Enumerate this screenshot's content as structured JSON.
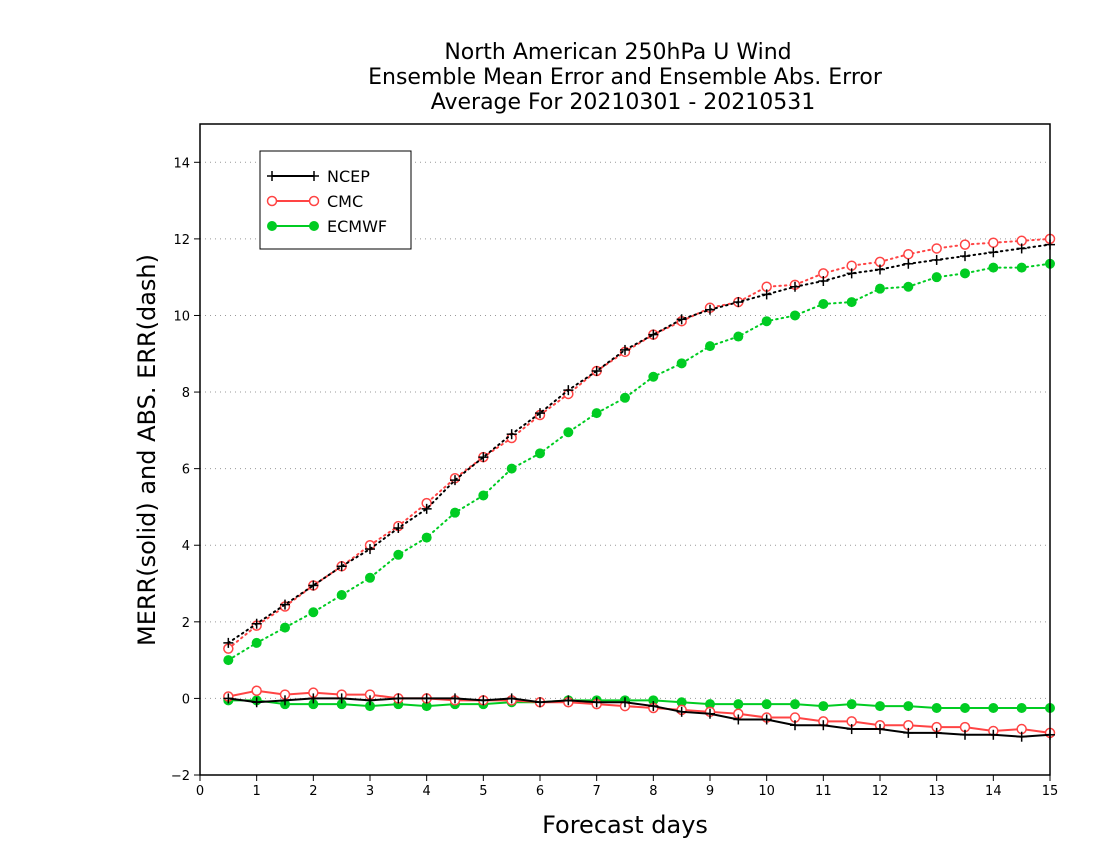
{
  "chart_data": {
    "type": "line",
    "title": [
      "North American 250hPa U Wind",
      "Ensemble Mean Error and Ensemble Abs. Error",
      "Average For 20210301 - 20210531"
    ],
    "xlabel": "Forecast days",
    "ylabel": "MERR(solid) and ABS. ERR(dash)",
    "xlim": [
      0,
      15
    ],
    "ylim": [
      -2,
      15
    ],
    "xticks": [
      0,
      1,
      2,
      3,
      4,
      5,
      6,
      7,
      8,
      9,
      10,
      11,
      12,
      13,
      14,
      15
    ],
    "yticks": [
      -2,
      0,
      2,
      4,
      6,
      8,
      10,
      12,
      14
    ],
    "grid": "horizontal dotted",
    "legend_position": "top-left",
    "x": [
      0.5,
      1,
      1.5,
      2,
      2.5,
      3,
      3.5,
      4,
      4.5,
      5,
      5.5,
      6,
      6.5,
      7,
      7.5,
      8,
      8.5,
      9,
      9.5,
      10,
      10.5,
      11,
      11.5,
      12,
      12.5,
      13,
      13.5,
      14,
      14.5,
      15
    ],
    "series": [
      {
        "name": "NCEP",
        "color": "#000000",
        "marker": "plus",
        "abs_error": [
          1.45,
          1.95,
          2.45,
          2.95,
          3.45,
          3.9,
          4.45,
          4.95,
          5.7,
          6.3,
          6.9,
          7.45,
          8.05,
          8.55,
          9.1,
          9.5,
          9.9,
          10.15,
          10.35,
          10.55,
          10.75,
          10.9,
          11.1,
          11.2,
          11.35,
          11.45,
          11.55,
          11.65,
          11.75,
          11.85
        ],
        "mean_error": [
          0.0,
          -0.1,
          -0.05,
          0.0,
          0.0,
          -0.05,
          0.0,
          0.0,
          0.0,
          -0.05,
          0.0,
          -0.1,
          -0.05,
          -0.1,
          -0.1,
          -0.2,
          -0.35,
          -0.4,
          -0.55,
          -0.55,
          -0.7,
          -0.7,
          -0.8,
          -0.8,
          -0.9,
          -0.9,
          -0.95,
          -0.95,
          -1.0,
          -0.95
        ]
      },
      {
        "name": "CMC",
        "color": "#ff4444",
        "marker": "open-circle",
        "abs_error": [
          1.3,
          1.9,
          2.4,
          2.95,
          3.45,
          4.0,
          4.5,
          5.1,
          5.75,
          6.3,
          6.8,
          7.4,
          7.95,
          8.55,
          9.05,
          9.5,
          9.85,
          10.2,
          10.35,
          10.75,
          10.8,
          11.1,
          11.3,
          11.4,
          11.6,
          11.75,
          11.85,
          11.9,
          11.95,
          12.0
        ],
        "mean_error": [
          0.05,
          0.2,
          0.1,
          0.15,
          0.1,
          0.1,
          0.0,
          0.0,
          -0.05,
          -0.05,
          -0.05,
          -0.1,
          -0.1,
          -0.15,
          -0.2,
          -0.25,
          -0.3,
          -0.35,
          -0.4,
          -0.5,
          -0.5,
          -0.6,
          -0.6,
          -0.7,
          -0.7,
          -0.75,
          -0.75,
          -0.85,
          -0.8,
          -0.9
        ]
      },
      {
        "name": "ECMWF",
        "color": "#00cc22",
        "marker": "filled-circle",
        "abs_error": [
          1.0,
          1.45,
          1.85,
          2.25,
          2.7,
          3.15,
          3.75,
          4.2,
          4.85,
          5.3,
          6.0,
          6.4,
          6.95,
          7.45,
          7.85,
          8.4,
          8.75,
          9.2,
          9.45,
          9.85,
          10.0,
          10.3,
          10.35,
          10.7,
          10.75,
          11.0,
          11.1,
          11.25,
          11.25,
          11.35
        ],
        "mean_error": [
          -0.05,
          -0.05,
          -0.15,
          -0.15,
          -0.15,
          -0.2,
          -0.15,
          -0.2,
          -0.15,
          -0.15,
          -0.1,
          -0.1,
          -0.05,
          -0.05,
          -0.05,
          -0.05,
          -0.1,
          -0.15,
          -0.15,
          -0.15,
          -0.15,
          -0.2,
          -0.15,
          -0.2,
          -0.2,
          -0.25,
          -0.25,
          -0.25,
          -0.25,
          -0.25
        ]
      }
    ]
  }
}
